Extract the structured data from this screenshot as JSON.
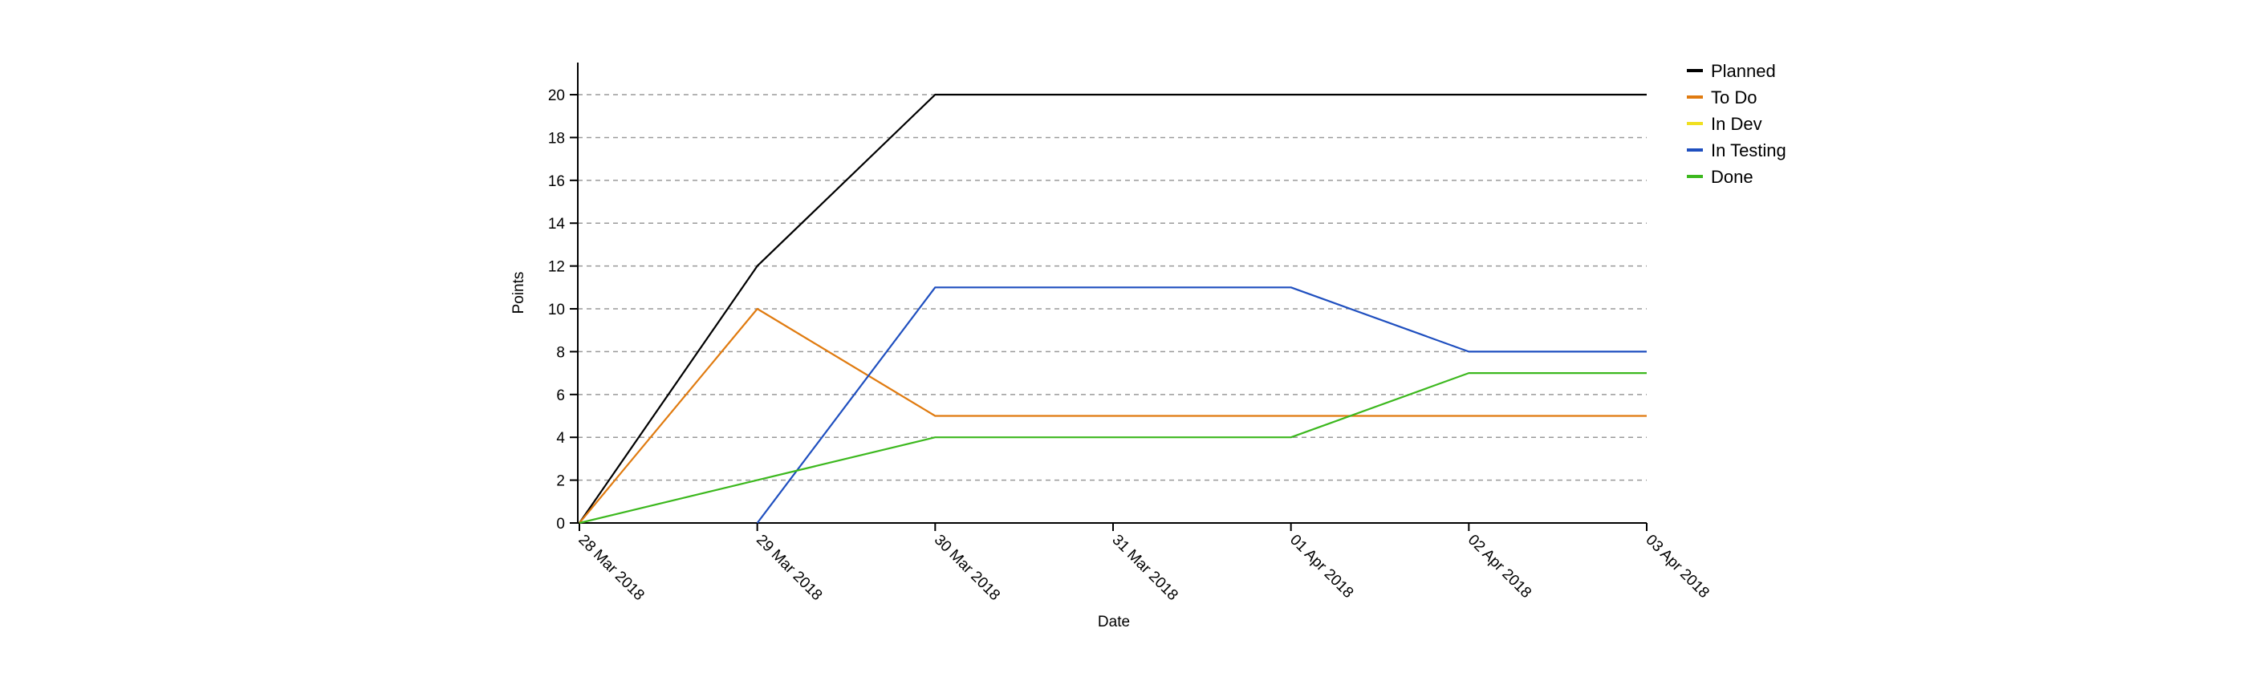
{
  "chart_data": {
    "type": "line",
    "title": "",
    "xlabel": "Date",
    "ylabel": "Points",
    "x": [
      "28 Mar 2018",
      "29 Mar 2018",
      "30 Mar 2018",
      "31 Mar 2018",
      "01 Apr 2018",
      "02 Apr 2018",
      "03 Apr 2018"
    ],
    "ylim": [
      0,
      21.5
    ],
    "yticks": [
      0,
      2,
      4,
      6,
      8,
      10,
      12,
      14,
      16,
      18,
      20
    ],
    "grid": "horizontal-dashed",
    "legend_position": "top-right",
    "series": [
      {
        "name": "Planned",
        "color": "#000000",
        "values": [
          0,
          12,
          20,
          20,
          20,
          20,
          20
        ]
      },
      {
        "name": "To Do",
        "color": "#e07b10",
        "values": [
          0,
          10,
          5,
          5,
          5,
          5,
          5
        ]
      },
      {
        "name": "In Dev",
        "color": "#f0e020",
        "values": [
          null,
          null,
          null,
          null,
          null,
          null,
          null
        ]
      },
      {
        "name": "In Testing",
        "color": "#1f4fbf",
        "values": [
          null,
          0,
          11,
          11,
          11,
          8,
          8
        ]
      },
      {
        "name": "Done",
        "color": "#3cb81e",
        "values": [
          0,
          2,
          4,
          4,
          4,
          7,
          7
        ]
      }
    ]
  }
}
